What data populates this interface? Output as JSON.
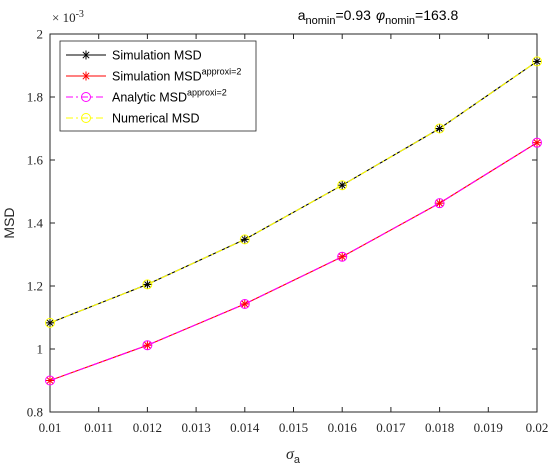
{
  "chart_data": {
    "type": "line",
    "title": {
      "part1_base": "a",
      "part1_sub": "nomin",
      "part1_value": "=0.93",
      "part2_symbol": "φ",
      "part2_sub": "nomin",
      "part2_value": "=163.8"
    },
    "xlabel": {
      "base": "σ",
      "sub": "a"
    },
    "ylabel": "MSD",
    "exponent_label": {
      "base": "× 10",
      "sup": "-3"
    },
    "xlim": [
      0.01,
      0.02
    ],
    "ylim": [
      0.8,
      2.0
    ],
    "x_ticks": [
      "0.01",
      "0.011",
      "0.012",
      "0.013",
      "0.014",
      "0.015",
      "0.016",
      "0.017",
      "0.018",
      "0.019",
      "0.02"
    ],
    "y_ticks": [
      "0.8",
      "1",
      "1.2",
      "1.4",
      "1.6",
      "1.8",
      "2"
    ],
    "x": [
      0.01,
      0.012,
      0.014,
      0.016,
      0.018,
      0.02
    ],
    "grid": false,
    "legend_position": "top-left",
    "series": [
      {
        "name": "Simulation MSD",
        "name_sup": "",
        "color": "#000000",
        "marker": "asterisk",
        "dash": "solid",
        "values": [
          1.083,
          1.205,
          1.348,
          1.52,
          1.7,
          1.913
        ]
      },
      {
        "name": "Simulation MSD",
        "name_sup": "approxi=2",
        "color": "#ff0000",
        "marker": "asterisk",
        "dash": "solid",
        "values": [
          0.9,
          1.012,
          1.143,
          1.293,
          1.463,
          1.655
        ]
      },
      {
        "name": "Analytic MSD",
        "name_sup": "approxi=2",
        "color": "#ff00ff",
        "marker": "circle",
        "dash": "dashdot",
        "values": [
          0.9,
          1.012,
          1.143,
          1.293,
          1.463,
          1.655
        ]
      },
      {
        "name": "Numerical MSD",
        "name_sup": "",
        "color": "#ffff00",
        "marker": "circle",
        "dash": "dashdot",
        "values": [
          1.083,
          1.205,
          1.348,
          1.52,
          1.7,
          1.913
        ]
      }
    ]
  }
}
